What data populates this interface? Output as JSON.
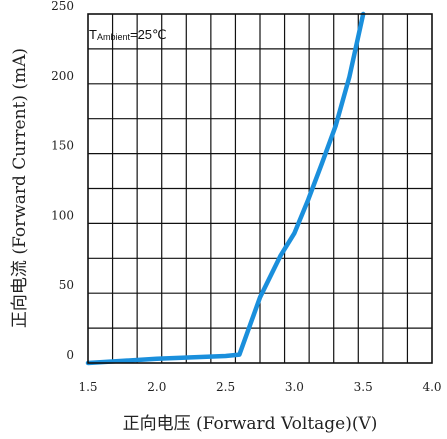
{
  "chart_data": {
    "type": "line",
    "title": "",
    "xlabel": "正向电压 (Forward Voltage)(V)",
    "ylabel": "正向电流 (Forward Current) (mA)",
    "xlim": [
      1.5,
      4.0
    ],
    "ylim": [
      0,
      250
    ],
    "x_ticks": [
      1.5,
      2.0,
      2.5,
      3.0,
      3.5,
      4.0
    ],
    "x_tick_labels": [
      "1.5",
      "2.0",
      "2.5",
      "3.0",
      "3.5",
      "4.0"
    ],
    "y_ticks": [
      0,
      50,
      100,
      150,
      200,
      250
    ],
    "y_tick_labels": [
      "0",
      "50",
      "100",
      "150",
      "200",
      "250"
    ],
    "grid": true,
    "annotation": {
      "prefix": "T",
      "subscript": "Ambient",
      "value": "=25℃"
    },
    "series": [
      {
        "color": "#1a8fdc",
        "x": [
          1.5,
          2.0,
          2.5,
          2.6,
          2.75,
          2.9,
          3.0,
          3.1,
          3.2,
          3.3,
          3.4,
          3.5
        ],
        "y": [
          0,
          3,
          5,
          6,
          47,
          77,
          93,
          117,
          143,
          170,
          205,
          250
        ]
      }
    ]
  }
}
